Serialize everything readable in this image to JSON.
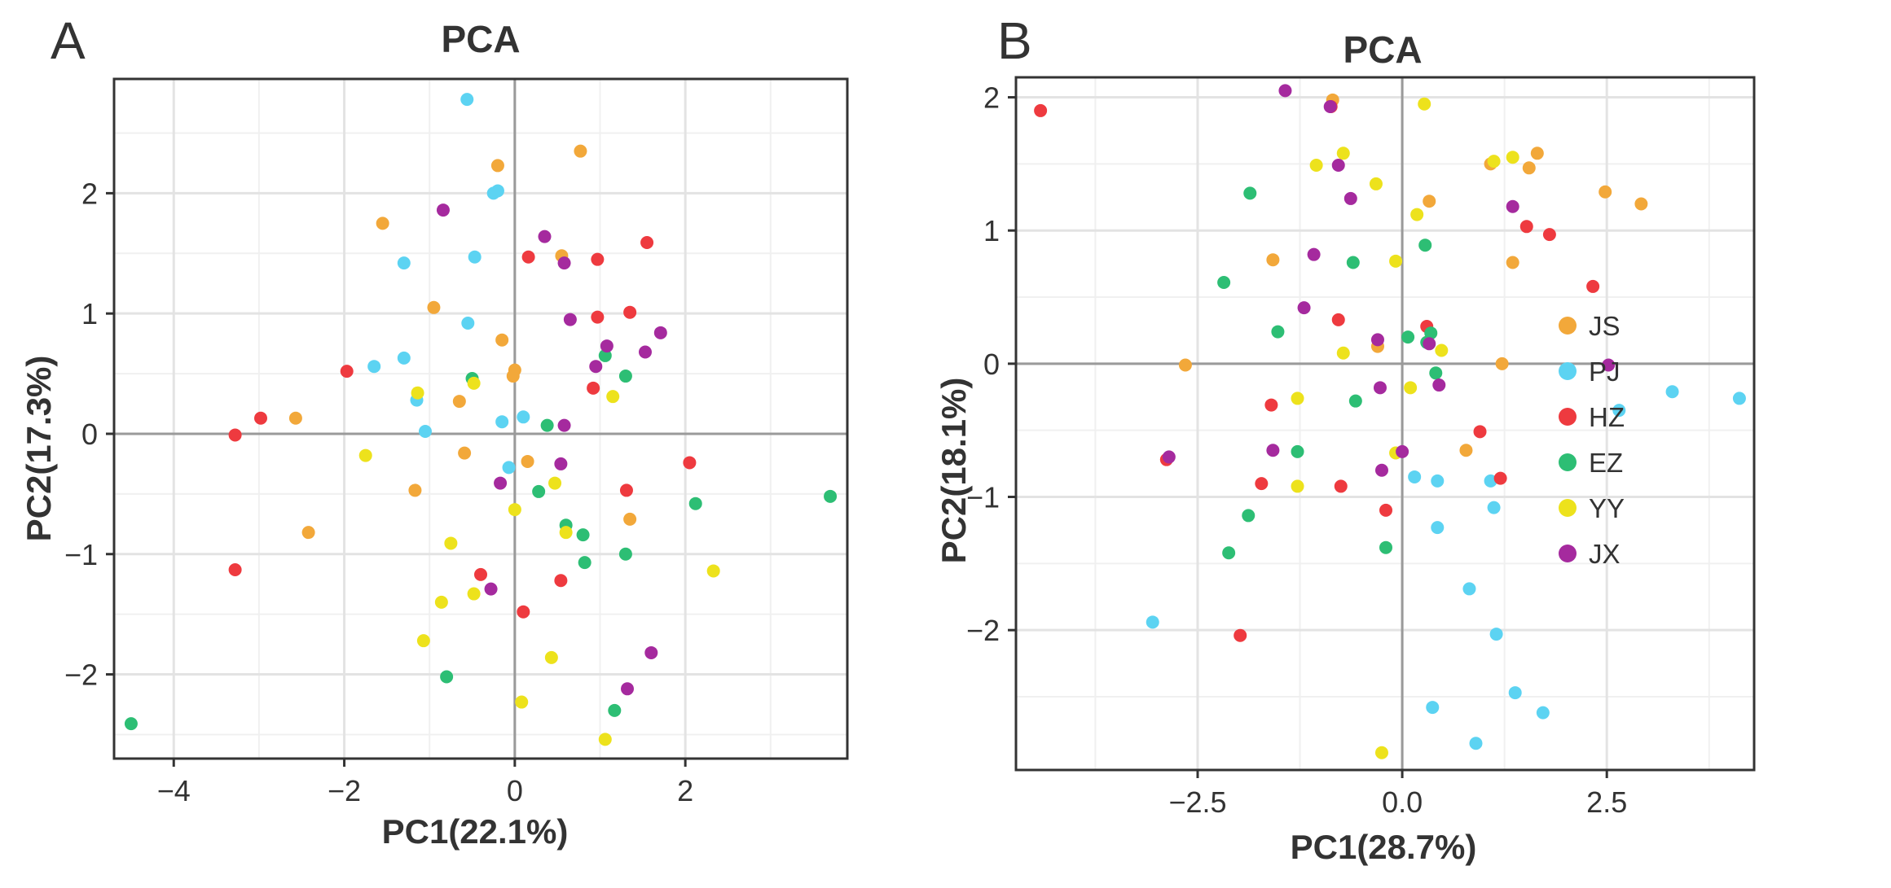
{
  "colors": {
    "JS": "#F2A83A",
    "PJ": "#5CD3F2",
    "HZ": "#EE3A3F",
    "EZ": "#2DBE74",
    "YY": "#EDE21C",
    "JX": "#A52A9E"
  },
  "legend": {
    "groups": [
      "JS",
      "PJ",
      "HZ",
      "EZ",
      "YY",
      "JX"
    ]
  },
  "chart_data": [
    {
      "type": "scatter",
      "panel_letter": "A",
      "title": "PCA",
      "xlabel": "PC1(22.1%)",
      "ylabel": "PC2(17.3%)",
      "xlim": [
        -4.7,
        3.9
      ],
      "ylim": [
        -2.7,
        2.95
      ],
      "x_ticks": [
        -4,
        -2,
        0,
        2
      ],
      "x_tick_labels": [
        "−4",
        "−2",
        "0",
        "2"
      ],
      "y_ticks": [
        -2,
        -1,
        0,
        1,
        2
      ],
      "y_tick_labels": [
        "−2",
        "−1",
        "0",
        "1",
        "2"
      ],
      "series": [
        {
          "name": "JS",
          "x": [
            0.77,
            -0.2,
            -1.55,
            0.55,
            -0.95,
            -0.15,
            0.0,
            -0.02,
            -0.65,
            -2.57,
            -0.59,
            0.15,
            -2.42,
            -1.17,
            1.35
          ],
          "y": [
            2.35,
            2.23,
            1.75,
            1.48,
            1.05,
            0.78,
            0.53,
            0.48,
            0.27,
            0.13,
            -0.16,
            -0.23,
            -0.82,
            -0.47,
            -0.71
          ]
        },
        {
          "name": "PJ",
          "x": [
            -0.56,
            -0.25,
            -0.2,
            -1.3,
            -0.47,
            -0.55,
            -1.65,
            -1.3,
            -1.15,
            -1.05,
            -0.15,
            0.1,
            -0.07
          ],
          "y": [
            2.78,
            2.0,
            2.02,
            1.42,
            1.47,
            0.92,
            0.56,
            0.63,
            0.28,
            0.02,
            0.1,
            0.14,
            -0.28
          ]
        },
        {
          "name": "HZ",
          "x": [
            1.55,
            0.97,
            0.16,
            -1.97,
            0.97,
            1.35,
            -2.98,
            -3.28,
            0.92,
            2.05,
            1.31,
            -0.4,
            0.54,
            0.1,
            -3.28
          ],
          "y": [
            1.59,
            1.45,
            1.47,
            0.52,
            0.97,
            1.01,
            0.13,
            -0.01,
            0.38,
            -0.24,
            -0.47,
            -1.17,
            -1.22,
            -1.48,
            -1.13
          ]
        },
        {
          "name": "EZ",
          "x": [
            1.06,
            1.3,
            -0.5,
            0.38,
            0.28,
            0.6,
            0.8,
            1.3,
            2.12,
            3.7,
            0.82,
            1.17,
            -0.8,
            -4.5
          ],
          "y": [
            0.65,
            0.48,
            0.46,
            0.07,
            -0.48,
            -0.76,
            -0.84,
            -1.0,
            -0.58,
            -0.52,
            -1.07,
            -2.3,
            -2.02,
            -2.41
          ]
        },
        {
          "name": "YY",
          "x": [
            -1.14,
            1.15,
            -0.48,
            -1.75,
            0.47,
            0.0,
            0.6,
            -0.75,
            -0.48,
            -0.86,
            -1.07,
            0.43,
            0.08,
            1.06,
            2.33
          ],
          "y": [
            0.34,
            0.31,
            0.42,
            -0.18,
            -0.41,
            -0.63,
            -0.82,
            -0.91,
            -1.33,
            -1.4,
            -1.72,
            -1.86,
            -2.23,
            -2.54,
            -1.14
          ]
        },
        {
          "name": "JX",
          "x": [
            -0.84,
            0.35,
            0.58,
            1.08,
            1.71,
            1.53,
            0.65,
            0.95,
            0.58,
            0.54,
            -0.17,
            -0.28,
            1.6,
            1.32
          ],
          "y": [
            1.86,
            1.64,
            1.42,
            0.73,
            0.84,
            0.68,
            0.95,
            0.56,
            0.07,
            -0.25,
            -0.41,
            -1.29,
            -1.82,
            -2.12
          ]
        }
      ]
    },
    {
      "type": "scatter",
      "panel_letter": "B",
      "title": "PCA",
      "xlabel": "PC1(28.7%)",
      "ylabel": "PC2(18.1%)",
      "xlim": [
        -4.72,
        4.3
      ],
      "ylim": [
        -3.05,
        2.15
      ],
      "x_ticks": [
        -2.5,
        0,
        2.5
      ],
      "x_tick_labels": [
        "−2.5",
        "0.0",
        "2.5"
      ],
      "y_ticks": [
        -2,
        -1,
        0,
        1,
        2
      ],
      "y_tick_labels": [
        "−2",
        "−1",
        "0",
        "1",
        "2"
      ],
      "series": [
        {
          "name": "JS",
          "x": [
            -0.85,
            1.65,
            1.08,
            1.55,
            2.48,
            2.92,
            0.33,
            1.35,
            -1.58,
            -2.65,
            -0.3,
            1.22,
            0.78
          ],
          "y": [
            1.98,
            1.58,
            1.5,
            1.47,
            1.29,
            1.2,
            1.22,
            0.76,
            0.78,
            -0.01,
            0.13,
            0.0,
            -0.65
          ]
        },
        {
          "name": "PJ",
          "x": [
            2.65,
            3.3,
            4.12,
            0.15,
            0.43,
            1.08,
            1.12,
            0.43,
            0.82,
            1.15,
            -3.05,
            1.38,
            1.72,
            0.37,
            0.9
          ],
          "y": [
            -0.35,
            -0.21,
            -0.26,
            -0.85,
            -0.88,
            -0.88,
            -1.08,
            -1.23,
            -1.69,
            -2.03,
            -1.94,
            -2.47,
            -2.62,
            -2.58,
            -2.85
          ]
        },
        {
          "name": "HZ",
          "x": [
            -4.42,
            -0.87,
            1.52,
            1.8,
            2.33,
            -0.78,
            0.3,
            -1.6,
            0.95,
            -1.72,
            -0.75,
            1.2,
            -0.2,
            -2.88,
            -1.98
          ],
          "y": [
            1.9,
            1.93,
            1.03,
            0.97,
            0.58,
            0.33,
            0.28,
            -0.31,
            -0.51,
            -0.9,
            -0.92,
            -0.86,
            -1.1,
            -0.72,
            -2.04
          ]
        },
        {
          "name": "EZ",
          "x": [
            -1.86,
            -2.18,
            -1.52,
            0.28,
            0.35,
            0.3,
            0.07,
            0.41,
            -0.6,
            -1.28,
            -1.88,
            -0.2,
            -2.12,
            -0.57
          ],
          "y": [
            1.28,
            0.61,
            0.24,
            0.89,
            0.23,
            0.16,
            0.2,
            -0.07,
            0.76,
            -0.66,
            -1.14,
            -1.38,
            -1.42,
            -0.28
          ]
        },
        {
          "name": "YY",
          "x": [
            0.27,
            -1.05,
            -0.72,
            1.35,
            1.12,
            -0.32,
            0.18,
            -0.08,
            0.48,
            -0.72,
            -1.28,
            0.1,
            -0.08,
            -1.28,
            -0.25
          ],
          "y": [
            1.95,
            1.49,
            1.58,
            1.55,
            1.52,
            1.35,
            1.12,
            0.77,
            0.1,
            0.08,
            -0.26,
            -0.18,
            -0.67,
            -0.92,
            -2.92
          ]
        },
        {
          "name": "JX",
          "x": [
            -1.43,
            -0.88,
            -0.78,
            -0.63,
            1.35,
            -1.08,
            -1.2,
            -0.3,
            0.45,
            0.33,
            -0.27,
            2.52,
            -1.58,
            -2.85,
            0.0,
            -0.25
          ],
          "y": [
            2.05,
            1.93,
            1.49,
            1.24,
            1.18,
            0.82,
            0.42,
            0.18,
            -0.16,
            0.15,
            -0.18,
            -0.01,
            -0.65,
            -0.7,
            -0.66,
            -0.8
          ]
        }
      ]
    }
  ]
}
